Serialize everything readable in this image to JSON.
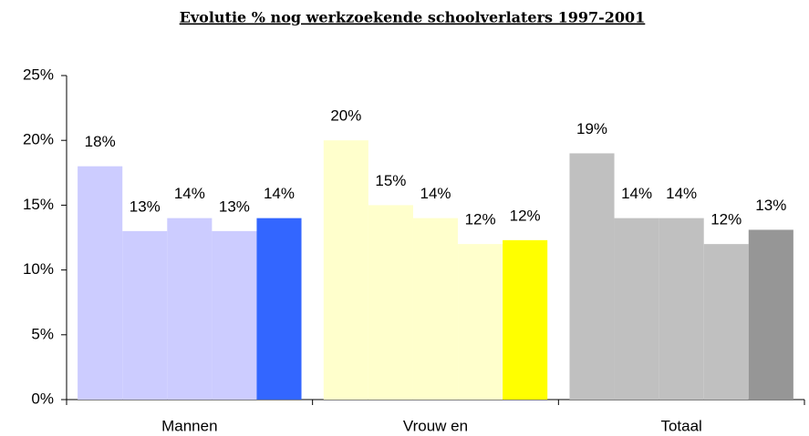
{
  "chart_data": {
    "type": "bar",
    "title": "Evolutie % nog werkzoekende schoolverlaters 1997-2001",
    "categories": [
      "Mannen",
      "Vrouw en",
      "Totaal"
    ],
    "series": [
      {
        "values": [
          18,
          20,
          19
        ],
        "value_labels": [
          "18%",
          "20%",
          "19%"
        ],
        "colors": [
          "#ccccff",
          "#ffffcc",
          "#c0c0c0"
        ]
      },
      {
        "values": [
          13,
          15,
          14
        ],
        "value_labels": [
          "13%",
          "15%",
          "14%"
        ],
        "colors": [
          "#ccccff",
          "#ffffcc",
          "#c0c0c0"
        ]
      },
      {
        "values": [
          14,
          14,
          14
        ],
        "value_labels": [
          "14%",
          "14%",
          "14%"
        ],
        "colors": [
          "#ccccff",
          "#ffffcc",
          "#c0c0c0"
        ]
      },
      {
        "values": [
          13,
          12,
          12
        ],
        "value_labels": [
          "13%",
          "12%",
          "12%"
        ],
        "colors": [
          "#ccccff",
          "#ffffcc",
          "#c0c0c0"
        ]
      },
      {
        "values": [
          14,
          12.3,
          13.1
        ],
        "value_labels": [
          "14%",
          "12%",
          "13%"
        ],
        "colors": [
          "#3366ff",
          "#ffff00",
          "#969696"
        ]
      }
    ],
    "ylim": [
      0,
      25
    ],
    "yticks": [
      {
        "value": 0,
        "label": "0%"
      },
      {
        "value": 5,
        "label": "5%"
      },
      {
        "value": 10,
        "label": "10%"
      },
      {
        "value": 15,
        "label": "15%"
      },
      {
        "value": 20,
        "label": "20%"
      },
      {
        "value": 25,
        "label": "25%"
      }
    ],
    "grid": false
  }
}
